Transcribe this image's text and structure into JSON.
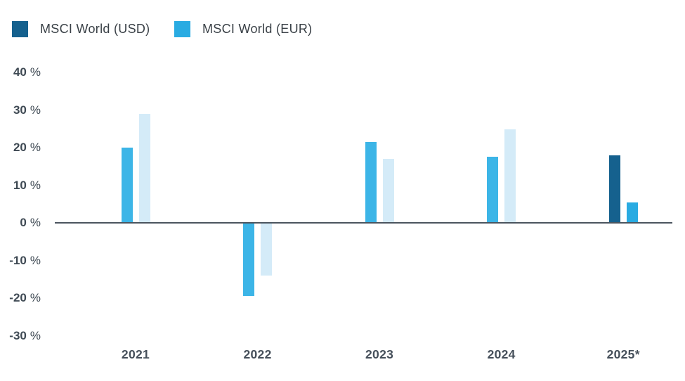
{
  "legend": {
    "items": [
      {
        "id": "usd",
        "label": "MSCI World (USD)",
        "color": "#15618E"
      },
      {
        "id": "eur",
        "label": "MSCI World (EUR)",
        "color": "#29ABE2"
      }
    ]
  },
  "axis": {
    "y_tick_labels": [
      "40",
      "30",
      "20",
      "10",
      "0",
      "-10",
      "-20",
      "-30"
    ],
    "y_suffix": "%"
  },
  "chart_data": {
    "type": "bar",
    "title": "",
    "categories": [
      "2021",
      "2022",
      "2023",
      "2024",
      "2025*"
    ],
    "series": [
      {
        "name": "MSCI World (USD)",
        "color": "#15618E",
        "muted_color": "#3CB5E7",
        "values": [
          20.0,
          -19.5,
          21.5,
          17.6,
          18.0
        ]
      },
      {
        "name": "MSCI World (EUR)",
        "color": "#29ABE2",
        "muted_color": "#D4EBF8",
        "values": [
          29.0,
          -14.0,
          17.0,
          24.8,
          5.4
        ]
      }
    ],
    "highlight_category": "2025*",
    "yticks": [
      40,
      30,
      20,
      10,
      0,
      -10,
      -20,
      -30
    ],
    "ylim": [
      -33,
      44
    ],
    "ytick_format": "{v} %",
    "grid": false,
    "legend_position": "top-left",
    "zero_line": true
  }
}
